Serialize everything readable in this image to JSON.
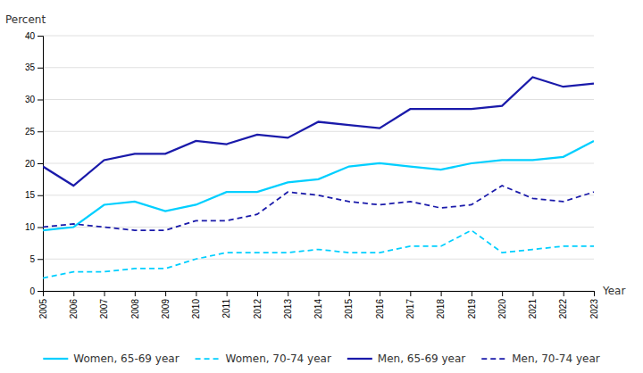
{
  "chart_data": {
    "type": "line",
    "xlabel": "Year",
    "ylabel": "Percent",
    "x": [
      2005,
      2006,
      2007,
      2008,
      2009,
      2010,
      2011,
      2012,
      2013,
      2014,
      2015,
      2016,
      2017,
      2018,
      2019,
      2020,
      2021,
      2022,
      2023
    ],
    "xlim": [
      2005,
      2023
    ],
    "xticks": [
      2005,
      2006,
      2007,
      2008,
      2009,
      2010,
      2011,
      2012,
      2013,
      2014,
      2015,
      2016,
      2017,
      2018,
      2019,
      2020,
      2021,
      2022,
      2023
    ],
    "ylim": [
      0,
      40
    ],
    "yticks": [
      0,
      5,
      10,
      15,
      20,
      25,
      30,
      35,
      40
    ],
    "grid": true,
    "legend": "bottom",
    "series": [
      {
        "name": "Women, 65-69 year",
        "color": "#00CFFF",
        "line_style": "solid",
        "values": [
          9.5,
          10.0,
          13.5,
          14.0,
          12.5,
          13.5,
          15.5,
          15.5,
          17.0,
          17.5,
          19.5,
          20.0,
          19.5,
          19.0,
          20.0,
          20.5,
          20.5,
          21.0,
          23.5
        ]
      },
      {
        "name": "Women, 70-74 year",
        "color": "#00CFFF",
        "line_style": "dashed",
        "values": [
          2.0,
          3.0,
          3.0,
          3.5,
          3.5,
          5.0,
          6.0,
          6.0,
          6.0,
          6.5,
          6.0,
          6.0,
          7.0,
          7.0,
          9.5,
          6.0,
          6.5,
          7.0,
          7.0
        ]
      },
      {
        "name": "Men, 65-69 year",
        "color": "#1a1aaa",
        "line_style": "solid",
        "values": [
          19.5,
          16.5,
          20.5,
          21.5,
          21.5,
          23.5,
          23.0,
          24.5,
          24.0,
          26.5,
          26.0,
          25.5,
          28.5,
          28.5,
          28.5,
          29.0,
          33.5,
          32.0,
          32.5
        ]
      },
      {
        "name": "Men, 70-74 year",
        "color": "#1a1aaa",
        "line_style": "dashed",
        "values": [
          10.0,
          10.5,
          10.0,
          9.5,
          9.5,
          11.0,
          11.0,
          12.0,
          15.5,
          15.0,
          14.0,
          13.5,
          14.0,
          13.0,
          13.5,
          16.5,
          14.5,
          14.0,
          15.5
        ]
      }
    ]
  }
}
